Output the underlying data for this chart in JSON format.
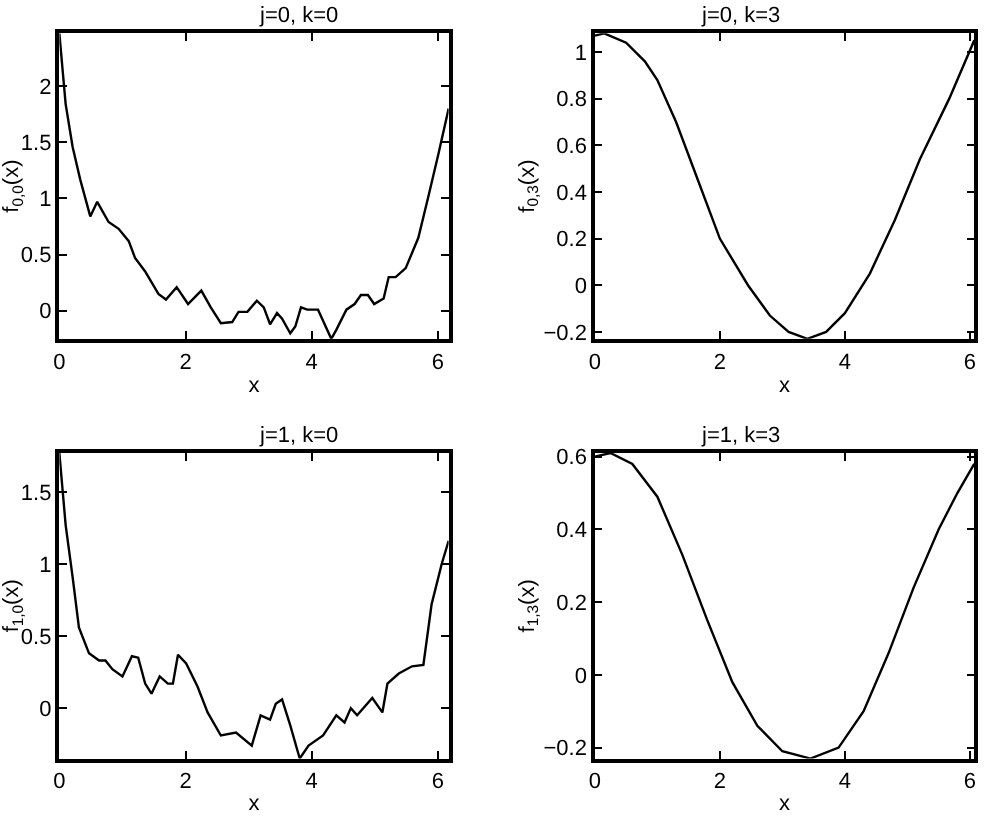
{
  "chart_data": [
    {
      "type": "line",
      "title": "j=0, k=0",
      "xlabel": "x",
      "ylabel": "f$_{0,0}$(x)",
      "xlim": [
        0,
        6.17
      ],
      "ylim": [
        -0.25,
        2.47
      ],
      "xticks": [
        0,
        2,
        4,
        6
      ],
      "yticks": [
        0,
        0.5,
        1,
        1.5,
        2
      ],
      "series": [
        {
          "color": "#000000",
          "x": [
            0,
            0.1,
            0.21,
            0.33,
            0.49,
            0.6,
            0.78,
            0.94,
            1.1,
            1.2,
            1.36,
            1.57,
            1.69,
            1.86,
            2.04,
            2.25,
            2.4,
            2.56,
            2.74,
            2.84,
            2.98,
            3.13,
            3.24,
            3.34,
            3.45,
            3.53,
            3.66,
            3.74,
            3.83,
            3.93,
            4.1,
            4.31,
            4.39,
            4.55,
            4.68,
            4.78,
            4.89,
            4.99,
            5.14,
            5.22,
            5.33,
            5.49,
            5.69,
            5.85,
            6.01,
            6.17
          ],
          "values": [
            2.47,
            1.84,
            1.46,
            1.17,
            0.84,
            0.97,
            0.79,
            0.73,
            0.62,
            0.47,
            0.35,
            0.15,
            0.1,
            0.21,
            0.06,
            0.18,
            0.03,
            -0.11,
            -0.1,
            -0.01,
            -0.01,
            0.09,
            0.03,
            -0.12,
            -0.02,
            -0.07,
            -0.2,
            -0.14,
            0.03,
            0.01,
            0.01,
            -0.25,
            -0.17,
            0.01,
            0.06,
            0.14,
            0.14,
            0.06,
            0.11,
            0.3,
            0.3,
            0.38,
            0.65,
            1.02,
            1.4,
            1.8
          ]
        }
      ]
    },
    {
      "type": "line",
      "title": "j=0, k=3",
      "xlabel": "x",
      "ylabel": "f$_{0,3}$(x)",
      "xlim": [
        0,
        6.07
      ],
      "ylim": [
        -0.23,
        1.08
      ],
      "xticks": [
        0,
        2,
        4,
        6
      ],
      "yticks": [
        -0.2,
        0,
        0.2,
        0.4,
        0.6,
        0.8,
        1
      ],
      "series": [
        {
          "color": "#000000",
          "x": [
            0,
            0.15,
            0.5,
            0.8,
            1.0,
            1.3,
            1.65,
            2.0,
            2.45,
            2.8,
            3.1,
            3.4,
            3.7,
            4.0,
            4.4,
            4.8,
            5.2,
            5.67,
            6.07
          ],
          "values": [
            1.07,
            1.08,
            1.04,
            0.96,
            0.88,
            0.7,
            0.45,
            0.2,
            0.0,
            -0.13,
            -0.2,
            -0.23,
            -0.2,
            -0.12,
            0.05,
            0.28,
            0.54,
            0.8,
            1.05
          ]
        }
      ]
    },
    {
      "type": "line",
      "title": "j=1, k=0",
      "xlabel": "x",
      "ylabel": "f$_{1,0}$(x)",
      "xlim": [
        0,
        6.17
      ],
      "ylim": [
        -0.35,
        1.77
      ],
      "xticks": [
        0,
        2,
        4,
        6
      ],
      "yticks": [
        0,
        0.5,
        1,
        1.5
      ],
      "series": [
        {
          "color": "#000000",
          "x": [
            0,
            0.1,
            0.21,
            0.31,
            0.47,
            0.63,
            0.73,
            0.84,
            1.0,
            1.15,
            1.25,
            1.36,
            1.46,
            1.59,
            1.72,
            1.8,
            1.88,
            2.01,
            2.19,
            2.35,
            2.56,
            2.8,
            3.05,
            3.19,
            3.34,
            3.43,
            3.53,
            3.66,
            3.81,
            3.95,
            4.18,
            4.39,
            4.52,
            4.62,
            4.72,
            4.96,
            5.12,
            5.2,
            5.38,
            5.59,
            5.77,
            5.9,
            6.06,
            6.17
          ],
          "values": [
            1.77,
            1.27,
            0.91,
            0.56,
            0.38,
            0.33,
            0.33,
            0.27,
            0.22,
            0.36,
            0.35,
            0.17,
            0.1,
            0.22,
            0.17,
            0.17,
            0.37,
            0.31,
            0.15,
            -0.03,
            -0.19,
            -0.17,
            -0.26,
            -0.05,
            -0.08,
            0.03,
            0.06,
            -0.12,
            -0.35,
            -0.26,
            -0.19,
            -0.05,
            -0.1,
            0.0,
            -0.05,
            0.07,
            -0.03,
            0.17,
            0.24,
            0.29,
            0.3,
            0.72,
            1.0,
            1.16
          ]
        }
      ]
    },
    {
      "type": "line",
      "title": "j=1, k=3",
      "xlabel": "x",
      "ylabel": "f$_{1,3}$(x)",
      "xlim": [
        0,
        6.07
      ],
      "ylim": [
        -0.23,
        0.61
      ],
      "xticks": [
        0,
        2,
        4,
        6
      ],
      "yticks": [
        -0.2,
        0,
        0.2,
        0.4,
        0.6
      ],
      "series": [
        {
          "color": "#000000",
          "x": [
            0,
            0.25,
            0.6,
            1.0,
            1.4,
            1.8,
            2.2,
            2.6,
            3.0,
            3.45,
            3.9,
            4.3,
            4.7,
            5.1,
            5.5,
            5.8,
            6.07
          ],
          "values": [
            0.6,
            0.61,
            0.58,
            0.49,
            0.33,
            0.15,
            -0.02,
            -0.14,
            -0.21,
            -0.23,
            -0.2,
            -0.1,
            0.06,
            0.24,
            0.4,
            0.5,
            0.58
          ]
        }
      ]
    }
  ]
}
